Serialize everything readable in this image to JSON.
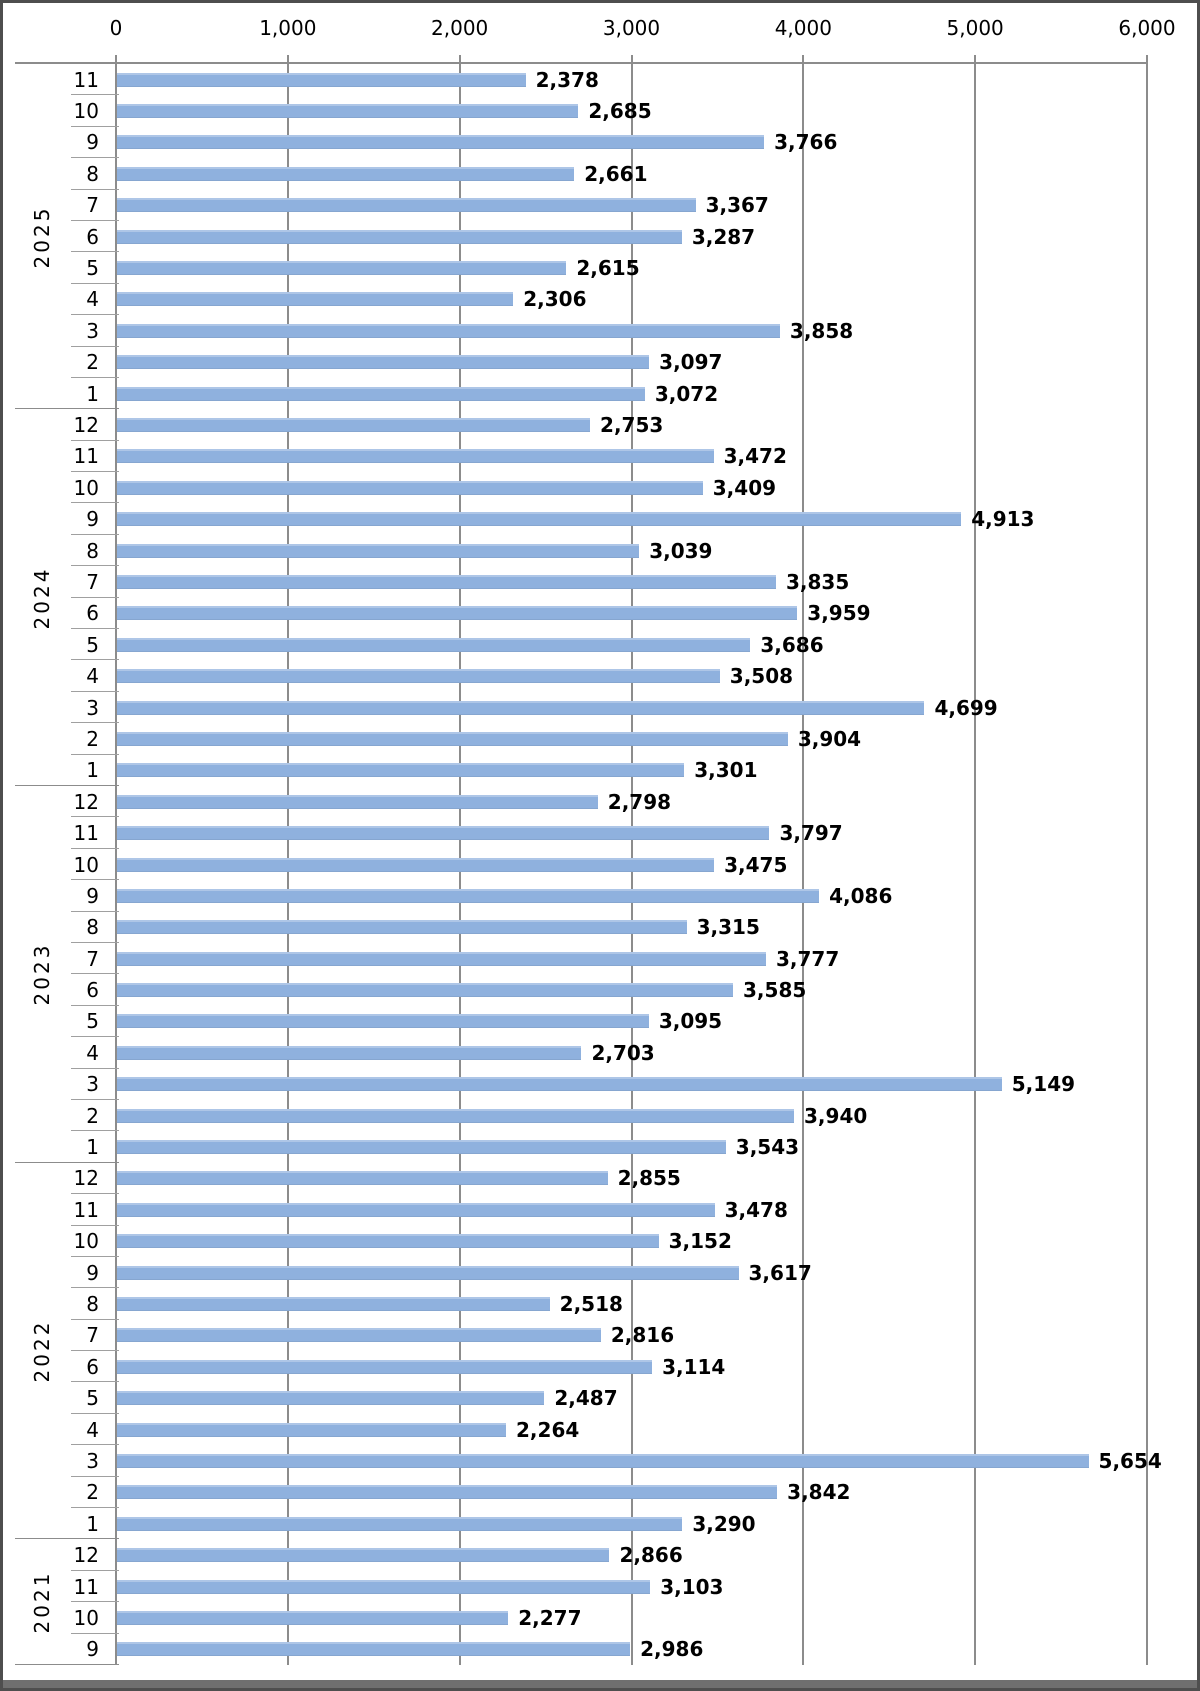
{
  "chart_data": {
    "type": "bar",
    "orientation": "horizontal",
    "title": "",
    "xlabel": "",
    "ylabel": "",
    "grid": true,
    "legend": "none",
    "data_labels": true,
    "bar_color": "#8FB1DE",
    "gridline_color": "#8C8C8C",
    "value_axis": {
      "position": "top",
      "min": 0,
      "max": 6000,
      "tick_interval": 1000,
      "tick_labels": [
        "0",
        "1,000",
        "2,000",
        "3,000",
        "4,000",
        "5,000",
        "6,000"
      ]
    },
    "category_axis": {
      "position": "left",
      "grouping": "year",
      "items": "month"
    },
    "groups": [
      {
        "year": "2025",
        "months": [
          11,
          10,
          9,
          8,
          7,
          6,
          5,
          4,
          3,
          2,
          1
        ],
        "values": [
          2378,
          2685,
          3766,
          2661,
          3367,
          3287,
          2615,
          2306,
          3858,
          3097,
          3072
        ],
        "labels": [
          "2,378",
          "2,685",
          "3,766",
          "2,661",
          "3,367",
          "3,287",
          "2,615",
          "2,306",
          "3,858",
          "3,097",
          "3,072"
        ]
      },
      {
        "year": "2024",
        "months": [
          12,
          11,
          10,
          9,
          8,
          7,
          6,
          5,
          4,
          3,
          2,
          1
        ],
        "values": [
          2753,
          3472,
          3409,
          4913,
          3039,
          3835,
          3959,
          3686,
          3508,
          4699,
          3904,
          3301
        ],
        "labels": [
          "2,753",
          "3,472",
          "3,409",
          "4,913",
          "3,039",
          "3,835",
          "3,959",
          "3,686",
          "3,508",
          "4,699",
          "3,904",
          "3,301"
        ]
      },
      {
        "year": "2023",
        "months": [
          12,
          11,
          10,
          9,
          8,
          7,
          6,
          5,
          4,
          3,
          2,
          1
        ],
        "values": [
          2798,
          3797,
          3475,
          4086,
          3315,
          3777,
          3585,
          3095,
          2703,
          5149,
          3940,
          3543
        ],
        "labels": [
          "2,798",
          "3,797",
          "3,475",
          "4,086",
          "3,315",
          "3,777",
          "3,585",
          "3,095",
          "2,703",
          "5,149",
          "3,940",
          "3,543"
        ]
      },
      {
        "year": "2022",
        "months": [
          12,
          11,
          10,
          9,
          8,
          7,
          6,
          5,
          4,
          3,
          2,
          1
        ],
        "values": [
          2855,
          3478,
          3152,
          3617,
          2518,
          2816,
          3114,
          2487,
          2264,
          5654,
          3842,
          3290
        ],
        "labels": [
          "2,855",
          "3,478",
          "3,152",
          "3,617",
          "2,518",
          "2,816",
          "3,114",
          "2,487",
          "2,264",
          "5,654",
          "3,842",
          "3,290"
        ]
      },
      {
        "year": "2021",
        "months": [
          12,
          11,
          10,
          9
        ],
        "values": [
          2866,
          3103,
          2277,
          2986
        ],
        "labels": [
          "2,866",
          "3,103",
          "2,277",
          "2,986"
        ]
      }
    ]
  }
}
